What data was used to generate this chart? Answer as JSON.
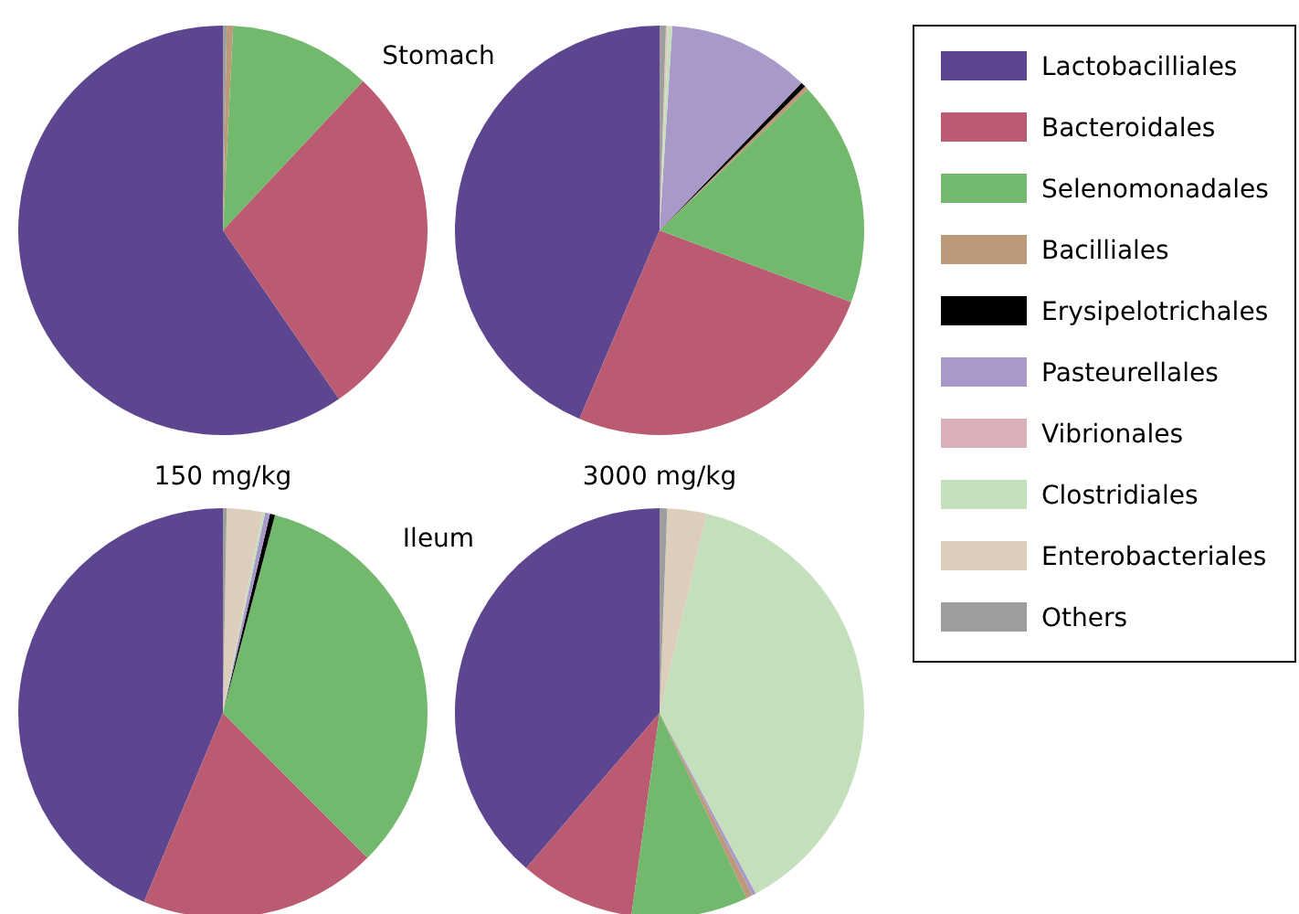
{
  "chart_data": {
    "type": "pie",
    "legend": "right",
    "annotations": [
      "Stomach",
      "150 mg/kg",
      "3000 mg/kg",
      "Ileum"
    ],
    "categories": [
      "Lactobacilliales",
      "Bacteroidales",
      "Selenomonadales",
      "Bacilliales",
      "Erysipelotrichales",
      "Pasteurellales",
      "Vibrionales",
      "Clostridiales",
      "Enterobacteriales",
      "Others"
    ],
    "colors": [
      "#5e4590",
      "#bb5b72",
      "#72b96d",
      "#bb9979",
      "#000000",
      "#a899c8",
      "#dcb0b8",
      "#c4dfbc",
      "#ddcdbc",
      "#9e9e9e"
    ],
    "series": [
      {
        "values": [
          59.6,
          28.4,
          11.2,
          0.5,
          0,
          0,
          0,
          0,
          0,
          0.3
        ]
      },
      {
        "values": [
          43.6,
          25.7,
          17.8,
          0.3,
          0.4,
          11.2,
          0,
          0.3,
          0.2,
          0.5
        ]
      },
      {
        "values": [
          43.7,
          18.8,
          33.4,
          0,
          0.4,
          0.4,
          0,
          0.2,
          2.8,
          0.3
        ]
      },
      {
        "values": [
          38.7,
          9.1,
          9.2,
          0.5,
          0,
          0.3,
          0,
          38.5,
          3.1,
          0.6
        ]
      }
    ]
  }
}
